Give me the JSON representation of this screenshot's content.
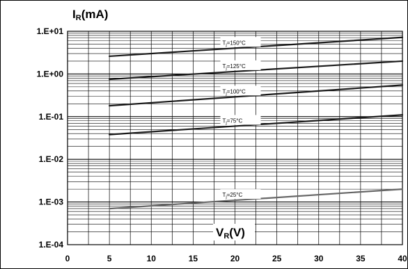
{
  "chart_data": {
    "type": "line",
    "x_axis": {
      "label_main": "V",
      "label_sub": "R",
      "label_unit": "(V)",
      "range": [
        0,
        40
      ],
      "ticks": [
        0,
        5,
        10,
        15,
        20,
        25,
        30,
        35,
        40
      ]
    },
    "y_axis": {
      "label_main": "I",
      "label_sub": "R",
      "label_unit": "(mA)",
      "scale": "log",
      "range": [
        0.0001,
        10
      ],
      "ticks": [
        {
          "value": 10,
          "label": "1.E+01"
        },
        {
          "value": 1,
          "label": "1.E+00"
        },
        {
          "value": 0.1,
          "label": "1.E-01"
        },
        {
          "value": 0.01,
          "label": "1.E-02"
        },
        {
          "value": 0.001,
          "label": "1.E-03"
        },
        {
          "value": 0.0001,
          "label": "1.E-04"
        }
      ]
    },
    "grid": true,
    "series": [
      {
        "name": "Tj=150°C",
        "label_sub": "j",
        "label_rest": "=150°C",
        "label_x": 20,
        "color": "#1a1a1a",
        "x": [
          5,
          40
        ],
        "y": [
          2.6,
          7.2
        ]
      },
      {
        "name": "Tj=125°C",
        "label_sub": "j",
        "label_rest": "=125°C",
        "label_x": 20,
        "color": "#1a1a1a",
        "x": [
          5,
          40
        ],
        "y": [
          0.75,
          2.0
        ]
      },
      {
        "name": "Tj=100°C",
        "label_sub": "j",
        "label_rest": "=100°C",
        "label_x": 20,
        "color": "#1a1a1a",
        "x": [
          5,
          40
        ],
        "y": [
          0.18,
          0.55
        ]
      },
      {
        "name": "Tj=75°C",
        "label_sub": "j",
        "label_rest": "=75°C",
        "label_x": 20,
        "color": "#1a1a1a",
        "x": [
          5,
          40
        ],
        "y": [
          0.038,
          0.11
        ]
      },
      {
        "name": "Tj=25°C",
        "label_sub": "j",
        "label_rest": "=25°C",
        "label_x": 20,
        "color": "#666666",
        "x": [
          5,
          40
        ],
        "y": [
          0.0007,
          0.002
        ]
      }
    ]
  }
}
